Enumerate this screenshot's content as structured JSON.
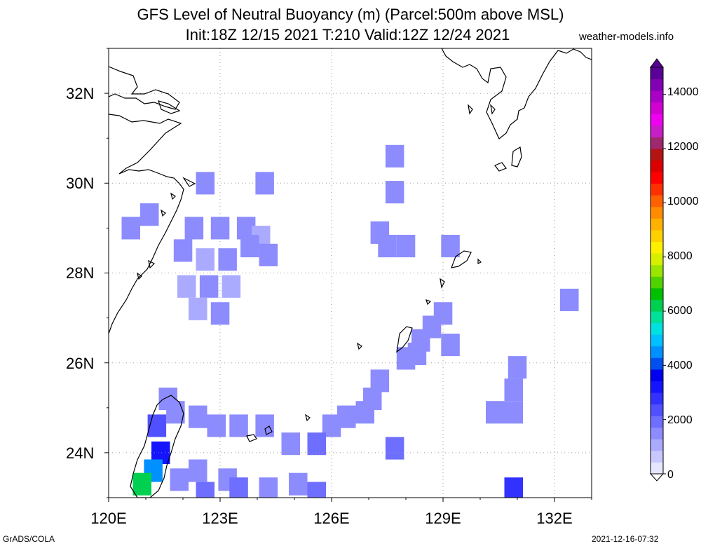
{
  "title": {
    "line1": "GFS Level of Neutral Buoyancy (m) (Parcel:500m above MSL)",
    "line2": "Init:18Z 12/15 2021 T:210 Valid:12Z 12/24 2021"
  },
  "source": "weather-models.info",
  "footer": {
    "left": "GrADS/COLA",
    "right": "2021-12-16-07:32"
  },
  "chart_data": {
    "type": "heatmap",
    "variable": "Level of Neutral Buoyancy (m)",
    "x_range": [
      120,
      133
    ],
    "y_range": [
      23,
      33
    ],
    "x_ticks": [
      "120E",
      "123E",
      "126E",
      "129E",
      "132E"
    ],
    "y_ticks": [
      "24N",
      "26N",
      "28N",
      "30N",
      "32N"
    ],
    "grid": true,
    "colorbar": {
      "range": [
        0,
        15000
      ],
      "ticks": [
        "0",
        "2000",
        "4000",
        "6000",
        "8000",
        "10000",
        "12000",
        "14000"
      ],
      "colors": [
        "#e6e6ff",
        "#c8c8ff",
        "#aaaaff",
        "#8c8cff",
        "#6e6eff",
        "#5050ff",
        "#3232ff",
        "#1414ff",
        "#0000ee",
        "#0050f0",
        "#0090ff",
        "#00c0ff",
        "#00e0e0",
        "#00e09a",
        "#00d050",
        "#00c000",
        "#50d200",
        "#9ae600",
        "#d7f000",
        "#fff000",
        "#ffd000",
        "#ffb000",
        "#ff8c00",
        "#ff6000",
        "#ff3000",
        "#ff0000",
        "#dc0000",
        "#b41414",
        "#a0286e",
        "#c81ec8",
        "#f000f0",
        "#d200d2",
        "#aa00c8",
        "#8200b4",
        "#5a0096"
      ]
    },
    "cells": [
      [
        122.6,
        30.0,
        1500
      ],
      [
        124.2,
        30.0,
        1400
      ],
      [
        120.6,
        29.0,
        1600
      ],
      [
        121.1,
        29.3,
        1700
      ],
      [
        122.3,
        29.0,
        1400
      ],
      [
        123.0,
        29.0,
        1500
      ],
      [
        123.7,
        29.0,
        1300
      ],
      [
        124.1,
        28.8,
        1200
      ],
      [
        122.0,
        28.5,
        1300
      ],
      [
        122.6,
        28.3,
        1200
      ],
      [
        123.2,
        28.3,
        1300
      ],
      [
        123.8,
        28.6,
        1400
      ],
      [
        124.3,
        28.4,
        1300
      ],
      [
        122.1,
        27.7,
        1200
      ],
      [
        122.7,
        27.7,
        1300
      ],
      [
        123.3,
        27.7,
        1200
      ],
      [
        122.4,
        27.2,
        1200
      ],
      [
        123.0,
        27.1,
        1300
      ],
      [
        127.7,
        30.6,
        1500
      ],
      [
        127.7,
        29.8,
        1500
      ],
      [
        127.3,
        28.9,
        1400
      ],
      [
        127.5,
        28.6,
        1300
      ],
      [
        128.0,
        28.6,
        1400
      ],
      [
        129.2,
        28.6,
        1500
      ],
      [
        129.0,
        27.1,
        1600
      ],
      [
        128.7,
        26.8,
        1600
      ],
      [
        128.4,
        26.5,
        1500
      ],
      [
        128.3,
        26.2,
        1400
      ],
      [
        128.0,
        26.1,
        1400
      ],
      [
        129.2,
        26.4,
        1500
      ],
      [
        131.0,
        25.9,
        1700
      ],
      [
        130.9,
        25.4,
        1400
      ],
      [
        130.4,
        24.9,
        1500
      ],
      [
        130.9,
        24.9,
        1600
      ],
      [
        132.4,
        27.4,
        1700
      ],
      [
        127.3,
        25.6,
        1500
      ],
      [
        127.1,
        25.2,
        1500
      ],
      [
        126.9,
        24.9,
        1600
      ],
      [
        126.4,
        24.8,
        1600
      ],
      [
        126.0,
        24.6,
        1700
      ],
      [
        125.6,
        24.2,
        1800
      ],
      [
        127.7,
        24.1,
        1900
      ],
      [
        124.9,
        24.2,
        1600
      ],
      [
        124.2,
        24.6,
        1400
      ],
      [
        123.5,
        24.6,
        1400
      ],
      [
        122.9,
        24.6,
        1500
      ],
      [
        122.4,
        24.8,
        1600
      ],
      [
        121.8,
        24.9,
        1700
      ],
      [
        121.6,
        25.2,
        1600
      ],
      [
        121.3,
        24.6,
        2400
      ],
      [
        121.4,
        24.0,
        3200
      ],
      [
        121.2,
        23.6,
        4600
      ],
      [
        120.9,
        23.3,
        6200
      ],
      [
        123.2,
        23.4,
        1400
      ],
      [
        122.4,
        23.6,
        1600
      ],
      [
        121.9,
        23.4,
        1700
      ],
      [
        122.6,
        23.1,
        1800
      ],
      [
        123.5,
        23.2,
        1900
      ],
      [
        124.3,
        23.2,
        1600
      ],
      [
        125.1,
        23.3,
        1600
      ],
      [
        125.6,
        23.1,
        1800
      ],
      [
        130.9,
        23.2,
        2600
      ]
    ]
  }
}
